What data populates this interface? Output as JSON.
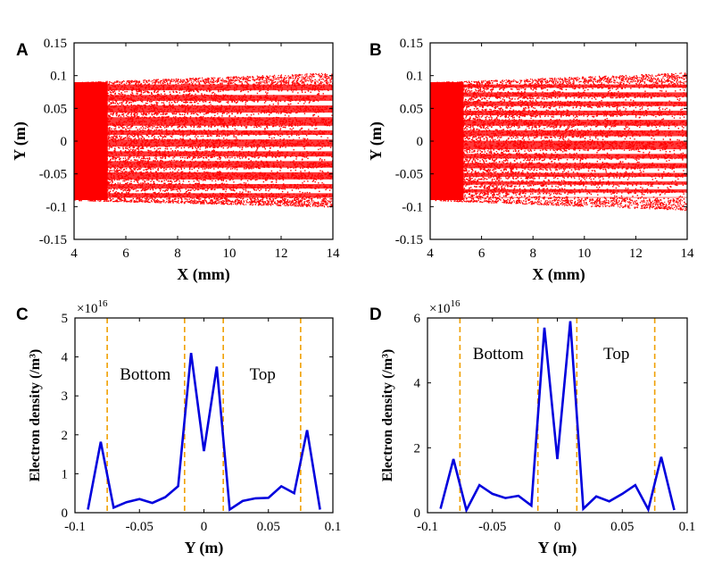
{
  "figure": {
    "panels": [
      "A",
      "B",
      "C",
      "D"
    ]
  },
  "chart_data": [
    {
      "id": "A",
      "type": "scatter",
      "title": "",
      "xlabel": "X (mm)",
      "ylabel": "Y (m)",
      "xlim": [
        4,
        14
      ],
      "ylim": [
        -0.15,
        0.15
      ],
      "xticks": [
        "4",
        "6",
        "8",
        "10",
        "12",
        "14"
      ],
      "yticks": [
        "0.15",
        "0.1",
        "0.05",
        "0",
        "-0.05",
        "-0.1",
        "-0.15"
      ],
      "marker_color": "#ff0000",
      "core_band": [
        -0.09,
        0.09
      ],
      "halo_band": [
        -0.1,
        0.105
      ],
      "gap_lines_y": [
        0.074,
        0.058,
        0.04,
        0.02,
        0.006,
        -0.012,
        -0.027,
        -0.044,
        -0.062,
        -0.076
      ]
    },
    {
      "id": "B",
      "type": "scatter",
      "title": "",
      "xlabel": "X (mm)",
      "ylabel": "Y (m)",
      "xlim": [
        4,
        14
      ],
      "ylim": [
        -0.15,
        0.15
      ],
      "xticks": [
        "4",
        "6",
        "8",
        "10",
        "12",
        "14"
      ],
      "yticks": [
        "0.15",
        "0.1",
        "0.05",
        "0",
        "-0.05",
        "-0.1",
        "-0.15"
      ],
      "marker_color": "#ff0000",
      "core_band": [
        -0.09,
        0.09
      ],
      "halo_band": [
        -0.105,
        0.105
      ],
      "gap_lines_y": [
        0.078,
        0.064,
        0.05,
        0.036,
        0.02,
        0.004,
        -0.016,
        -0.03,
        -0.045,
        -0.058,
        -0.07,
        -0.082
      ]
    },
    {
      "id": "C",
      "type": "line",
      "title": "",
      "xlabel": "Y (m)",
      "ylabel": "Electron density (/m³)",
      "exponent_label": "×10",
      "exponent_power": "16",
      "xlim": [
        -0.1,
        0.1
      ],
      "ylim": [
        0,
        5
      ],
      "xticks": [
        "-0.1",
        "-0.05",
        "0",
        "0.05",
        "0.1"
      ],
      "yticks": [
        "0",
        "1",
        "2",
        "3",
        "4",
        "5"
      ],
      "series": [
        {
          "name": "density",
          "color": "#0000dd",
          "x": [
            -0.09,
            -0.08,
            -0.07,
            -0.06,
            -0.05,
            -0.04,
            -0.03,
            -0.02,
            -0.01,
            0.0,
            0.01,
            0.02,
            0.03,
            0.04,
            0.05,
            0.06,
            0.07,
            0.08,
            0.09
          ],
          "y": [
            0.08,
            1.82,
            0.13,
            0.27,
            0.35,
            0.25,
            0.4,
            0.68,
            4.1,
            1.58,
            3.75,
            0.08,
            0.3,
            0.37,
            0.38,
            0.68,
            0.5,
            2.12,
            0.08
          ]
        }
      ],
      "vlines": [
        -0.075,
        -0.015,
        0.015,
        0.075
      ],
      "vline_color": "#f0a000",
      "annotations": [
        {
          "text": "Bottom",
          "x": -0.0455,
          "y": 3.55
        },
        {
          "text": "Top",
          "x": 0.0455,
          "y": 3.55
        }
      ]
    },
    {
      "id": "D",
      "type": "line",
      "title": "",
      "xlabel": "Y (m)",
      "ylabel": "Electron density (/m³)",
      "exponent_label": "×10",
      "exponent_power": "16",
      "xlim": [
        -0.1,
        0.1
      ],
      "ylim": [
        0,
        6
      ],
      "xticks": [
        "-0.1",
        "-0.05",
        "0",
        "0.05",
        "0.1"
      ],
      "yticks": [
        "0",
        "2",
        "4",
        "6"
      ],
      "series": [
        {
          "name": "density",
          "color": "#0000dd",
          "x": [
            -0.09,
            -0.08,
            -0.07,
            -0.06,
            -0.05,
            -0.04,
            -0.03,
            -0.02,
            -0.01,
            0.0,
            0.01,
            0.02,
            0.03,
            0.04,
            0.05,
            0.06,
            0.07,
            0.08,
            0.09
          ],
          "y": [
            0.12,
            1.65,
            0.08,
            0.85,
            0.58,
            0.45,
            0.52,
            0.22,
            5.7,
            1.65,
            5.9,
            0.12,
            0.5,
            0.35,
            0.58,
            0.85,
            0.1,
            1.72,
            0.08
          ]
        }
      ],
      "vlines": [
        -0.075,
        -0.015,
        0.015,
        0.075
      ],
      "vline_color": "#f0a000",
      "annotations": [
        {
          "text": "Bottom",
          "x": -0.0455,
          "y": 4.9
        },
        {
          "text": "Top",
          "x": 0.0455,
          "y": 4.9
        }
      ]
    }
  ]
}
